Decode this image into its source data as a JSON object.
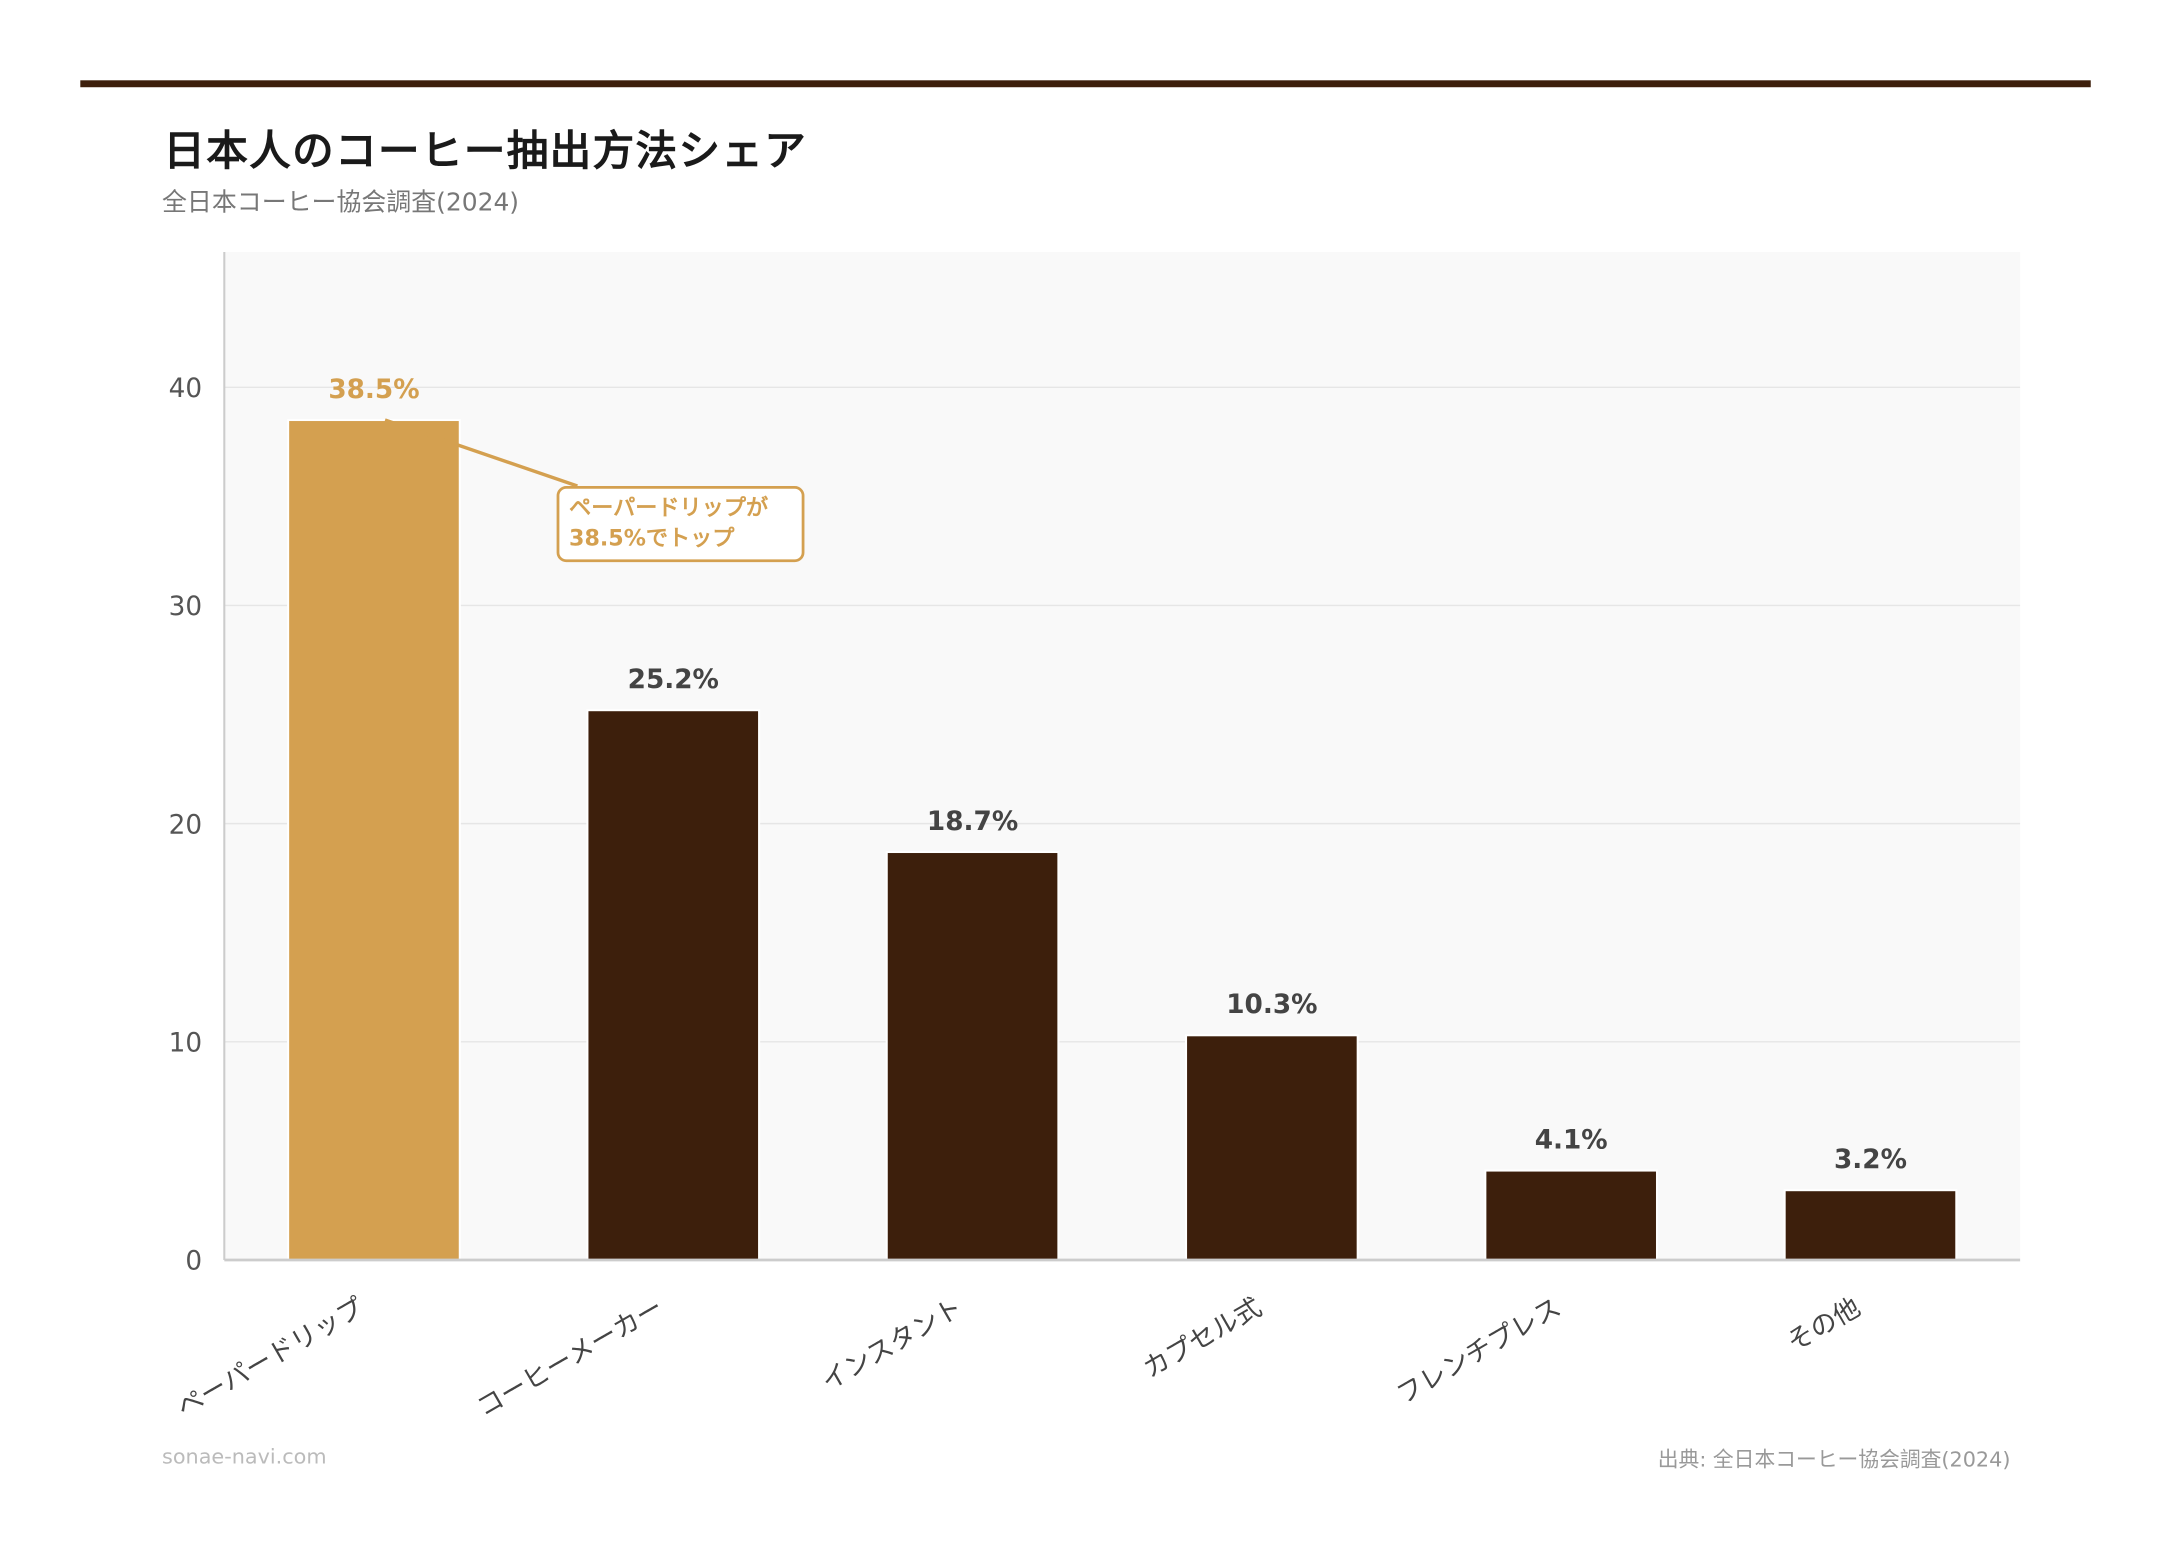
{
  "title": "日本人のコーヒー抽出方法シェア",
  "subtitle": "全日本コーヒー協会調査(2024)",
  "footer": {
    "site": "sonae-navi.com",
    "source": "出典: 全日本コーヒー協会調査(2024)"
  },
  "colors": {
    "highlight": "#D4A050",
    "bar": "#3D1F0C",
    "topbar": "#3D1F0C",
    "plot_bg": "#F9F9F9"
  },
  "chart_data": {
    "type": "bar",
    "categories": [
      "ペーパードリップ",
      "コーヒーメーカー",
      "インスタント",
      "カプセル式",
      "フレンチプレス",
      "その他"
    ],
    "values": [
      38.5,
      25.2,
      18.7,
      10.3,
      4.1,
      3.2
    ],
    "data_labels": [
      "38.5%",
      "25.2%",
      "18.7%",
      "10.3%",
      "4.1%",
      "3.2%"
    ],
    "highlight_index": 0,
    "yticks": [
      0,
      10,
      20,
      30,
      40
    ],
    "ylim": [
      0,
      46.2
    ],
    "grid": true,
    "annotation": {
      "lines": [
        "ペーパードリップが",
        "38.5%でトップ"
      ],
      "target_index": 0
    }
  }
}
